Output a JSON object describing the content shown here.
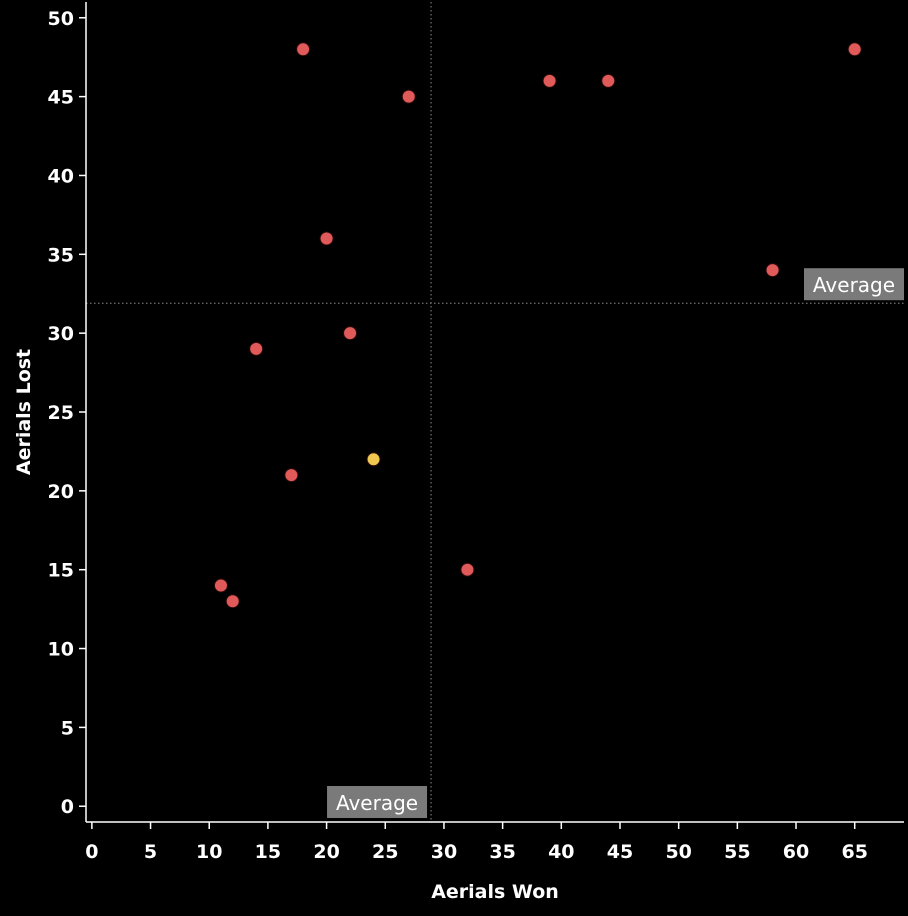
{
  "chart_data": {
    "type": "scatter",
    "title": "",
    "xlabel": "Aerials Won",
    "ylabel": "Aerials Lost",
    "xlim": [
      -0.5,
      69.2
    ],
    "ylim": [
      -1,
      51
    ],
    "x_ticks": [
      0,
      5,
      10,
      15,
      20,
      25,
      30,
      35,
      40,
      45,
      50,
      55,
      60,
      65
    ],
    "y_ticks": [
      0,
      5,
      10,
      15,
      20,
      25,
      30,
      35,
      40,
      45,
      50
    ],
    "grid": false,
    "reference_lines": [
      {
        "axis": "x",
        "value": 28.9,
        "label": "Average"
      },
      {
        "axis": "y",
        "value": 31.9,
        "label": "Average"
      }
    ],
    "series": [
      {
        "color": "#e05a5a",
        "points": [
          {
            "x": 18,
            "y": 48
          },
          {
            "x": 27,
            "y": 45
          },
          {
            "x": 39,
            "y": 46
          },
          {
            "x": 44,
            "y": 46
          },
          {
            "x": 65,
            "y": 48
          },
          {
            "x": 20,
            "y": 36
          },
          {
            "x": 58,
            "y": 34
          },
          {
            "x": 22,
            "y": 30
          },
          {
            "x": 14,
            "y": 29
          },
          {
            "x": 17,
            "y": 21
          },
          {
            "x": 32,
            "y": 15
          },
          {
            "x": 11,
            "y": 14
          },
          {
            "x": 12,
            "y": 13
          }
        ]
      },
      {
        "color": "#f0c850",
        "points": [
          {
            "x": 24,
            "y": 22
          }
        ]
      }
    ]
  },
  "colors": {
    "background": "#000000",
    "axis": "#ffffff",
    "reference_line": "#8a8a8a",
    "reference_label_bg": "#7a7a7a",
    "point_stroke": "#2a0a0a"
  }
}
